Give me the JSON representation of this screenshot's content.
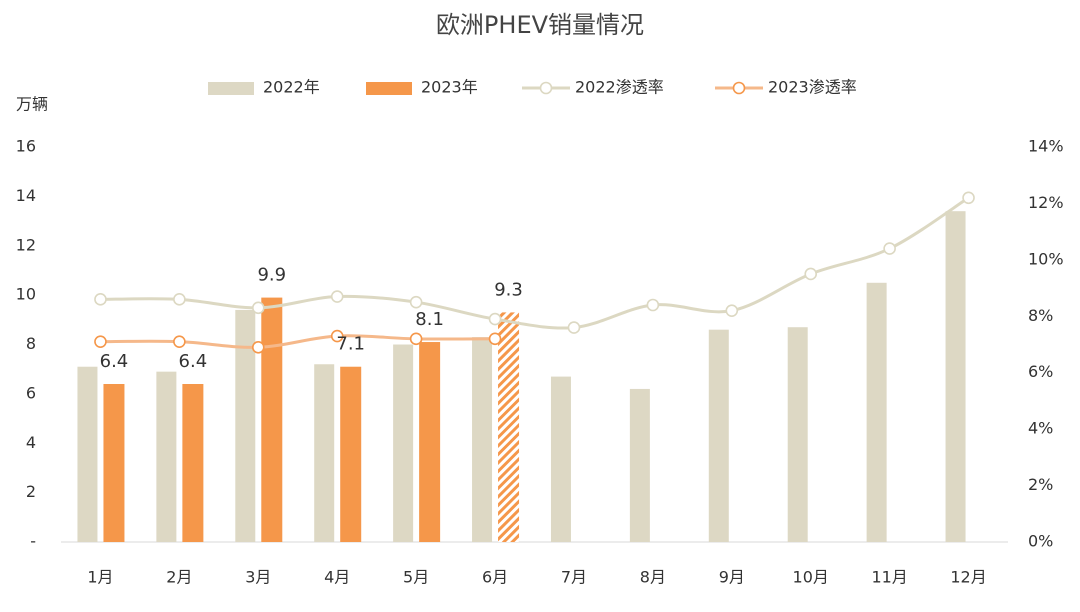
{
  "chart_data": {
    "type": "bar",
    "title": "欧洲PHEV销量情况",
    "y_label": "万辆",
    "categories": [
      "1月",
      "2月",
      "3月",
      "4月",
      "5月",
      "6月",
      "7月",
      "8月",
      "9月",
      "10月",
      "11月",
      "12月"
    ],
    "series": [
      {
        "name": "2022年",
        "type": "bar",
        "color": "#ddd8c4",
        "values": [
          7.1,
          6.9,
          9.4,
          7.2,
          8.0,
          8.3,
          6.7,
          6.2,
          8.6,
          8.7,
          10.5,
          13.4
        ]
      },
      {
        "name": "2023年",
        "type": "bar",
        "color": "#f5974a",
        "values": [
          6.4,
          6.4,
          9.9,
          7.1,
          8.1,
          9.3,
          null,
          null,
          null,
          null,
          null,
          null
        ],
        "hatched": [
          5
        ],
        "data_labels": true
      },
      {
        "name": "2022渗透率",
        "type": "line",
        "axis": "y2",
        "color": "#dcd8c2",
        "values": [
          8.6,
          8.6,
          8.3,
          8.7,
          8.5,
          7.9,
          7.6,
          8.4,
          8.2,
          9.5,
          10.4,
          12.2
        ]
      },
      {
        "name": "2023渗透率",
        "type": "line",
        "axis": "y2",
        "color": "#f5b88a",
        "marker_color": "#f5974a",
        "values": [
          7.1,
          7.1,
          6.9,
          7.3,
          7.2,
          7.2,
          null,
          null,
          null,
          null,
          null,
          null
        ]
      }
    ],
    "ylim": [
      0,
      16
    ],
    "yticks": [
      {
        "value": 0,
        "label": "-"
      },
      2,
      4,
      6,
      8,
      10,
      12,
      14,
      16
    ],
    "y2lim": [
      0,
      14
    ],
    "y2ticks": [
      {
        "value": 0,
        "label": "0%"
      },
      {
        "value": 2,
        "label": "2%"
      },
      {
        "value": 4,
        "label": "4%"
      },
      {
        "value": 6,
        "label": "6%"
      },
      {
        "value": 8,
        "label": "8%"
      },
      {
        "value": 10,
        "label": "10%"
      },
      {
        "value": 12,
        "label": "12%"
      },
      {
        "value": 14,
        "label": "14%"
      }
    ],
    "legend": "top"
  }
}
